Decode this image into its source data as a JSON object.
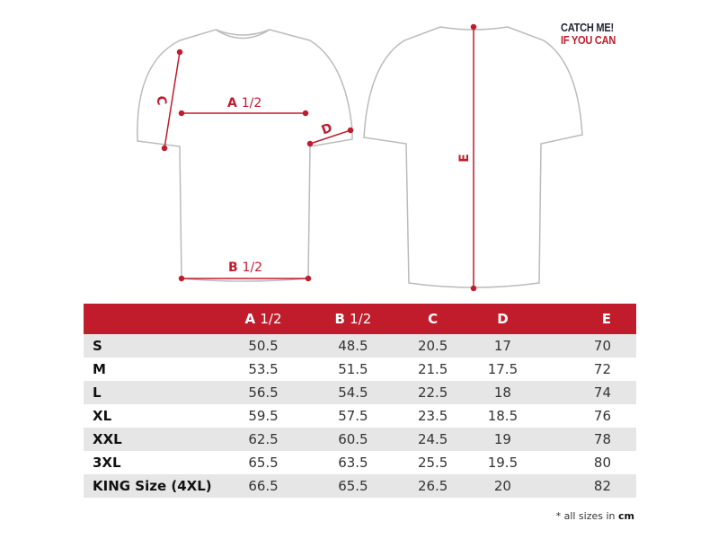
{
  "logo": {
    "line1": "CATCH ME!",
    "line2": "IF YOU CAN"
  },
  "diagram": {
    "labels": {
      "a": "A",
      "b": "B",
      "half": "1/2",
      "c": "C",
      "d": "D",
      "e": "E"
    }
  },
  "table": {
    "headers": [
      {
        "letter": "A",
        "suffix": "1/2"
      },
      {
        "letter": "B",
        "suffix": "1/2"
      },
      {
        "letter": "C",
        "suffix": ""
      },
      {
        "letter": "D",
        "suffix": ""
      },
      {
        "letter": "E",
        "suffix": ""
      }
    ],
    "rows": [
      {
        "size": "S",
        "values": [
          "50.5",
          "48.5",
          "20.5",
          "17",
          "70"
        ]
      },
      {
        "size": "M",
        "values": [
          "53.5",
          "51.5",
          "21.5",
          "17.5",
          "72"
        ]
      },
      {
        "size": "L",
        "values": [
          "56.5",
          "54.5",
          "22.5",
          "18",
          "74"
        ]
      },
      {
        "size": "XL",
        "values": [
          "59.5",
          "57.5",
          "23.5",
          "18.5",
          "76"
        ]
      },
      {
        "size": "XXL",
        "values": [
          "62.5",
          "60.5",
          "24.5",
          "19",
          "78"
        ]
      },
      {
        "size": "3XL",
        "values": [
          "65.5",
          "63.5",
          "25.5",
          "19.5",
          "80"
        ]
      },
      {
        "size": "KING Size (4XL)",
        "values": [
          "66.5",
          "65.5",
          "26.5",
          "20",
          "82"
        ]
      }
    ],
    "header_color": "#c01c2c"
  },
  "footnote": {
    "text": "* all sizes in ",
    "unit": "cm"
  }
}
